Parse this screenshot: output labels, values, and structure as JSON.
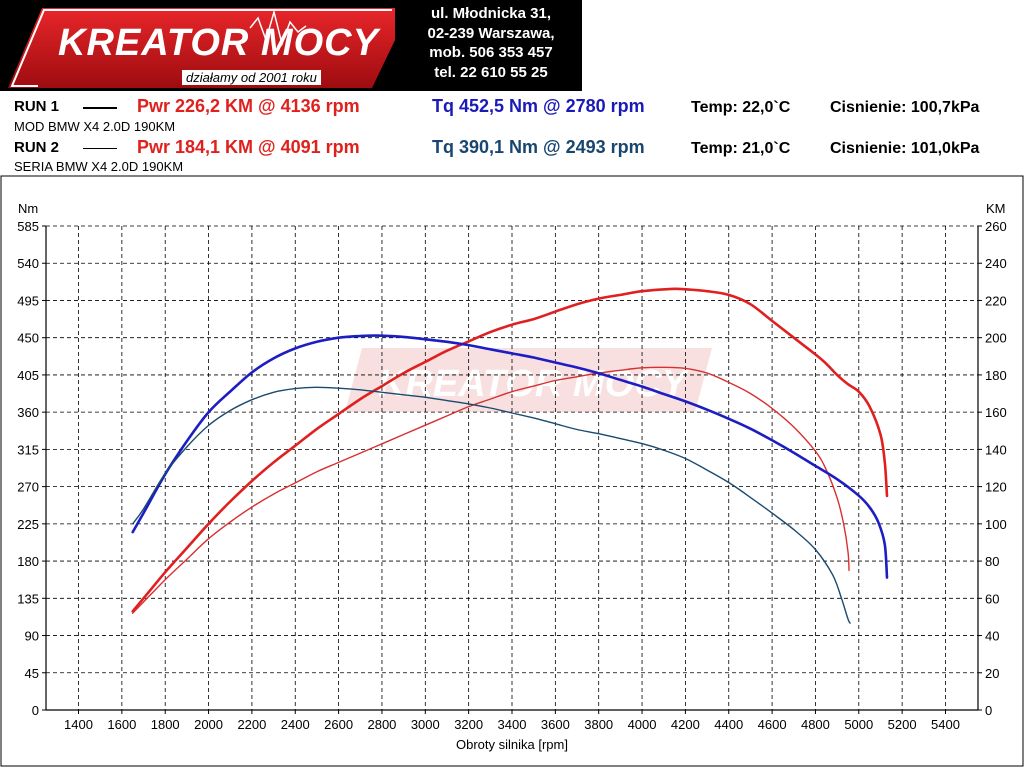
{
  "header": {
    "logo_text": "KREATOR MOCY",
    "logo_tagline": "działamy od 2001 roku",
    "address": [
      "ul. Młodnicka 31,",
      "02-239  Warszawa,",
      "mob.  506 353 457",
      "tel.  22 610 55 25"
    ]
  },
  "runs": [
    {
      "label": "RUN 1",
      "vehicle": "MOD BMW X4 2.0D 190KM",
      "pwr_text": "Pwr  226,2 KM @ 4136 rpm",
      "tq_text": "Tq 452,5 Nm @ 2780 rpm",
      "temp_text": "Temp: 22,0`C",
      "pressure_text": "Cisnienie: 100,7kPa"
    },
    {
      "label": "RUN 2",
      "vehicle": "SERIA BMW X4 2.0D 190KM",
      "pwr_text": "Pwr  184,1 KM @ 4091 rpm",
      "tq_text": "Tq 390,1 Nm @ 2493 rpm",
      "temp_text": "Temp: 21,0`C",
      "pressure_text": "Cisnienie: 101,0kPa"
    }
  ],
  "colors": {
    "run1_power": "#e02020",
    "run2_power": "#d83030",
    "run1_torque": "#1d1dc4",
    "run2_torque": "#1a4a70",
    "grid": "#000000"
  },
  "chart_data": {
    "type": "line",
    "xlabel": "Obroty silnika [rpm]",
    "ylabel_left": "Nm",
    "ylabel_right": "KM",
    "xlim": [
      1250,
      5550
    ],
    "ylim_left": [
      0,
      585
    ],
    "ylim_right": [
      0,
      260
    ],
    "x_ticks": [
      1400,
      1600,
      1800,
      2000,
      2200,
      2400,
      2600,
      2800,
      3000,
      3200,
      3400,
      3600,
      3800,
      4000,
      4200,
      4400,
      4600,
      4800,
      5000,
      5200,
      5400
    ],
    "y_ticks_left": [
      0,
      45,
      90,
      135,
      180,
      225,
      270,
      315,
      360,
      405,
      450,
      495,
      540,
      585
    ],
    "y_ticks_right": [
      0,
      20,
      40,
      60,
      80,
      100,
      120,
      140,
      160,
      180,
      200,
      220,
      240,
      260
    ],
    "grid": true,
    "series": [
      {
        "axis": "right",
        "color": "#e02020",
        "width": 2.6,
        "points": [
          [
            1650,
            53
          ],
          [
            1700,
            60
          ],
          [
            1800,
            74
          ],
          [
            1900,
            87
          ],
          [
            2000,
            100
          ],
          [
            2100,
            112
          ],
          [
            2200,
            123
          ],
          [
            2300,
            133
          ],
          [
            2400,
            142
          ],
          [
            2500,
            151
          ],
          [
            2600,
            159
          ],
          [
            2700,
            167
          ],
          [
            2800,
            174
          ],
          [
            2900,
            181
          ],
          [
            3000,
            187
          ],
          [
            3100,
            193
          ],
          [
            3200,
            198
          ],
          [
            3300,
            203
          ],
          [
            3400,
            207
          ],
          [
            3500,
            210
          ],
          [
            3600,
            214
          ],
          [
            3700,
            218
          ],
          [
            3800,
            221
          ],
          [
            3900,
            223
          ],
          [
            4000,
            225
          ],
          [
            4136,
            226.2
          ],
          [
            4200,
            226
          ],
          [
            4300,
            225
          ],
          [
            4400,
            223
          ],
          [
            4500,
            218
          ],
          [
            4600,
            209
          ],
          [
            4700,
            200
          ],
          [
            4800,
            191
          ],
          [
            4850,
            186
          ],
          [
            4900,
            180
          ],
          [
            4950,
            175
          ],
          [
            5000,
            171
          ],
          [
            5050,
            163
          ],
          [
            5100,
            148
          ],
          [
            5120,
            133
          ],
          [
            5130,
            115
          ]
        ]
      },
      {
        "axis": "right",
        "color": "#d83030",
        "width": 1.4,
        "points": [
          [
            1650,
            52
          ],
          [
            1700,
            58
          ],
          [
            1800,
            70
          ],
          [
            1900,
            81
          ],
          [
            2000,
            92
          ],
          [
            2100,
            101
          ],
          [
            2200,
            109
          ],
          [
            2300,
            116
          ],
          [
            2400,
            122
          ],
          [
            2500,
            128
          ],
          [
            2600,
            133
          ],
          [
            2700,
            138
          ],
          [
            2800,
            143
          ],
          [
            2900,
            148
          ],
          [
            3000,
            153
          ],
          [
            3100,
            158
          ],
          [
            3200,
            163
          ],
          [
            3300,
            167
          ],
          [
            3400,
            171
          ],
          [
            3500,
            174
          ],
          [
            3600,
            177
          ],
          [
            3700,
            179
          ],
          [
            3800,
            181
          ],
          [
            3900,
            182.5
          ],
          [
            4000,
            183.8
          ],
          [
            4091,
            184.1
          ],
          [
            4200,
            183.5
          ],
          [
            4300,
            181
          ],
          [
            4400,
            176
          ],
          [
            4500,
            170
          ],
          [
            4600,
            162
          ],
          [
            4700,
            152
          ],
          [
            4800,
            139
          ],
          [
            4850,
            129
          ],
          [
            4900,
            114
          ],
          [
            4930,
            100
          ],
          [
            4950,
            85
          ],
          [
            4955,
            75
          ]
        ]
      },
      {
        "axis": "left",
        "color": "#1d1dc4",
        "width": 2.6,
        "points": [
          [
            1650,
            215
          ],
          [
            1700,
            238
          ],
          [
            1800,
            285
          ],
          [
            1900,
            325
          ],
          [
            2000,
            360
          ],
          [
            2100,
            385
          ],
          [
            2200,
            408
          ],
          [
            2300,
            425
          ],
          [
            2400,
            437
          ],
          [
            2500,
            445
          ],
          [
            2600,
            450
          ],
          [
            2700,
            452
          ],
          [
            2780,
            452.5
          ],
          [
            2900,
            451
          ],
          [
            3000,
            448
          ],
          [
            3100,
            445
          ],
          [
            3200,
            441
          ],
          [
            3300,
            436
          ],
          [
            3400,
            431
          ],
          [
            3500,
            426
          ],
          [
            3600,
            420
          ],
          [
            3700,
            414
          ],
          [
            3800,
            407
          ],
          [
            3900,
            399
          ],
          [
            4000,
            391
          ],
          [
            4100,
            382
          ],
          [
            4200,
            373
          ],
          [
            4300,
            363
          ],
          [
            4400,
            352
          ],
          [
            4500,
            340
          ],
          [
            4600,
            326
          ],
          [
            4700,
            311
          ],
          [
            4800,
            295
          ],
          [
            4900,
            279
          ],
          [
            5000,
            259
          ],
          [
            5050,
            245
          ],
          [
            5090,
            227
          ],
          [
            5120,
            200
          ],
          [
            5130,
            160
          ]
        ]
      },
      {
        "axis": "left",
        "color": "#1a4a70",
        "width": 1.4,
        "points": [
          [
            1650,
            225
          ],
          [
            1700,
            243
          ],
          [
            1800,
            286
          ],
          [
            1900,
            318
          ],
          [
            2000,
            344
          ],
          [
            2100,
            362
          ],
          [
            2200,
            375
          ],
          [
            2300,
            384
          ],
          [
            2400,
            388.5
          ],
          [
            2493,
            390.1
          ],
          [
            2600,
            389
          ],
          [
            2700,
            387
          ],
          [
            2800,
            384
          ],
          [
            2900,
            381
          ],
          [
            3000,
            378
          ],
          [
            3100,
            374
          ],
          [
            3200,
            370
          ],
          [
            3300,
            365
          ],
          [
            3400,
            359
          ],
          [
            3500,
            353
          ],
          [
            3600,
            346
          ],
          [
            3700,
            339
          ],
          [
            3800,
            334
          ],
          [
            3900,
            328
          ],
          [
            4000,
            322
          ],
          [
            4100,
            314
          ],
          [
            4200,
            304
          ],
          [
            4300,
            290
          ],
          [
            4400,
            275
          ],
          [
            4500,
            257
          ],
          [
            4600,
            238
          ],
          [
            4700,
            218
          ],
          [
            4800,
            194
          ],
          [
            4880,
            163
          ],
          [
            4920,
            135
          ],
          [
            4950,
            110
          ],
          [
            4960,
            105
          ]
        ]
      }
    ]
  }
}
